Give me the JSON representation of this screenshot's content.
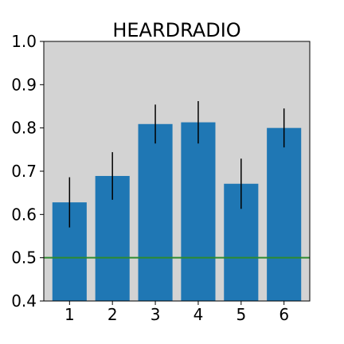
{
  "chart_data": {
    "type": "bar",
    "title": "HEARDRADIO",
    "xlabel": "",
    "ylabel": "",
    "categories": [
      "1",
      "2",
      "3",
      "4",
      "5",
      "6"
    ],
    "values": [
      0.628,
      0.689,
      0.809,
      0.813,
      0.671,
      0.8
    ],
    "error": [
      0.058,
      0.055,
      0.045,
      0.049,
      0.058,
      0.045
    ],
    "ylim": [
      0.4,
      1.0
    ],
    "yticks": [
      "0.4",
      "0.5",
      "0.6",
      "0.7",
      "0.8",
      "0.9",
      "1.0"
    ],
    "reference_line": {
      "y": 0.5,
      "color": "#2e8b2e"
    },
    "grid": false,
    "legend": "none",
    "colors": {
      "bar": "#1f77b4",
      "error_bar": "#000000",
      "plot_background": "#d3d3d3"
    }
  }
}
